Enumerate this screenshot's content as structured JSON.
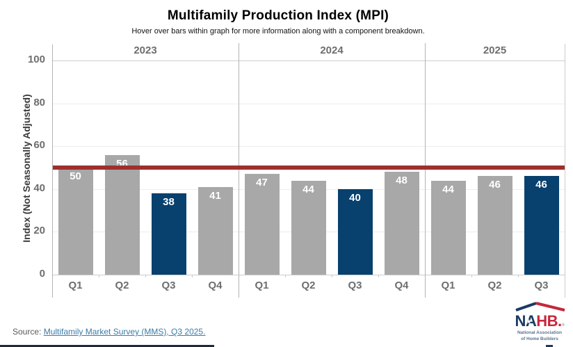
{
  "header": {
    "title": "Multifamily Production Index (MPI)",
    "subtitle": "Hover over bars within graph for more information along with a component breakdown."
  },
  "chart_data": {
    "type": "bar",
    "ylabel": "Index (Not Seasonally Adjusted)",
    "ylim": [
      0,
      100
    ],
    "yticks": [
      0,
      20,
      40,
      60,
      80,
      100
    ],
    "benchmark": {
      "value": 50,
      "color": "#9e2f2f"
    },
    "groups": [
      {
        "year": "2023",
        "categories": [
          "Q1",
          "Q2",
          "Q3",
          "Q4"
        ],
        "values": [
          50,
          56,
          38,
          41
        ],
        "highlight": [
          false,
          false,
          true,
          false
        ]
      },
      {
        "year": "2024",
        "categories": [
          "Q1",
          "Q2",
          "Q3",
          "Q4"
        ],
        "values": [
          47,
          44,
          40,
          48
        ],
        "highlight": [
          false,
          false,
          true,
          false
        ]
      },
      {
        "year": "2025",
        "categories": [
          "Q1",
          "Q2",
          "Q3"
        ],
        "values": [
          44,
          46,
          46
        ],
        "highlight": [
          false,
          false,
          true
        ]
      }
    ],
    "colors": {
      "bar": "#a8a8a8",
      "bar_highlight": "#08406e",
      "bar_label": "#ffffff",
      "axis_text": "#6e6e6e",
      "frame": "#b3b3b3",
      "grid_major": "#cccccc",
      "grid_minor": "#ededed"
    },
    "legend_position": "none",
    "grid": true
  },
  "footer": {
    "source_prefix": "Source: ",
    "source_link": "Multifamily Market Survey (MMS), Q3 2025."
  },
  "logo": {
    "na": "NA",
    "hb": "HB",
    "dot": ".",
    "reg": "®",
    "star": "★",
    "sub_line1": "National Association",
    "sub_line2": "of Home Builders"
  }
}
